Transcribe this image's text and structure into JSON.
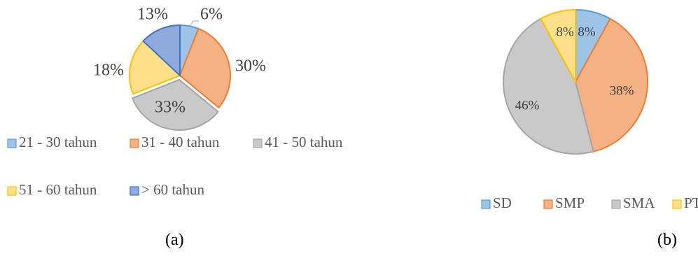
{
  "figure_labels": [
    "(a)",
    "(b)"
  ],
  "chart_data": [
    {
      "type": "pie",
      "categories": [
        "21 - 30 tahun",
        "31 - 40 tahun",
        "41 - 50 tahun",
        "51 - 60 tahun",
        "> 60 tahun"
      ],
      "values": [
        6,
        30,
        33,
        18,
        13
      ],
      "data_labels": [
        "6%",
        "30%",
        "33%",
        "18%",
        "13%"
      ],
      "colors": [
        "#9dc3e6",
        "#f4b183",
        "#c9c9c9",
        "#ffe08a",
        "#8faadc"
      ],
      "edge_colors": [
        "#5b9bd5",
        "#ed7d31",
        "#a5a5a5",
        "#ffc000",
        "#4472c4"
      ],
      "legend_position": "bottom",
      "title": ""
    },
    {
      "type": "pie",
      "categories": [
        "SD",
        "SMP",
        "SMA",
        "PT"
      ],
      "values": [
        8,
        38,
        46,
        8
      ],
      "data_labels": [
        "8%",
        "38%",
        "46%",
        "8%"
      ],
      "colors": [
        "#9dc3e6",
        "#f4b183",
        "#c9c9c9",
        "#ffe08a"
      ],
      "edge_colors": [
        "#5b9bd5",
        "#ed7d31",
        "#a5a5a5",
        "#ffc000"
      ],
      "legend_position": "bottom",
      "title": ""
    }
  ]
}
